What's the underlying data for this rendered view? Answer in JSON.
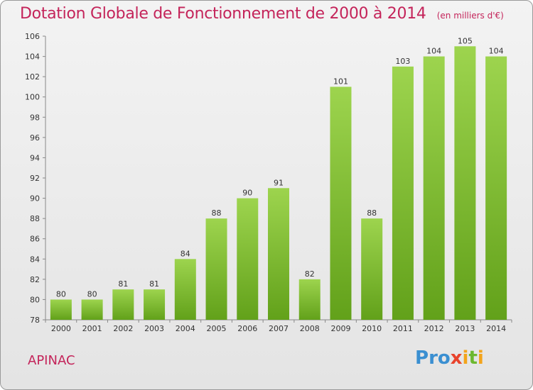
{
  "title": "Dotation Globale de Fonctionnement de 2000 à 2014",
  "subtitle": "(en milliers d'€)",
  "commune": "APINAC",
  "logo": {
    "text": "Proxiti",
    "letters": [
      {
        "ch": "P",
        "color": "#3a8fd1"
      },
      {
        "ch": "r",
        "color": "#3a8fd1"
      },
      {
        "ch": "o",
        "color": "#3a8fd1"
      },
      {
        "ch": "x",
        "color": "#e8432c"
      },
      {
        "ch": "i",
        "color": "#f3a41b"
      },
      {
        "ch": "t",
        "color": "#6cb82f"
      },
      {
        "ch": "i",
        "color": "#f3a41b"
      }
    ]
  },
  "colors": {
    "accent": "#c4245a",
    "bar_top": "#9dd44e",
    "bar_bottom": "#62a11a"
  },
  "chart_data": {
    "type": "bar",
    "categories": [
      "2000",
      "2001",
      "2002",
      "2003",
      "2004",
      "2005",
      "2006",
      "2007",
      "2008",
      "2009",
      "2010",
      "2011",
      "2012",
      "2013",
      "2014"
    ],
    "values": [
      80,
      80,
      81,
      81,
      84,
      88,
      90,
      91,
      82,
      101,
      88,
      103,
      104,
      105,
      104
    ],
    "ylim": [
      78,
      106
    ],
    "yticks": [
      78,
      80,
      82,
      84,
      86,
      88,
      90,
      92,
      94,
      96,
      98,
      100,
      102,
      104,
      106
    ],
    "grid": false
  }
}
